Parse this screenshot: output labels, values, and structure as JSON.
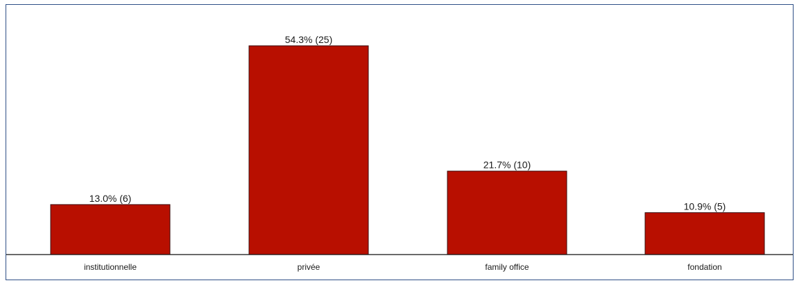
{
  "chart_data": {
    "type": "bar",
    "title": "",
    "xlabel": "",
    "ylabel": "",
    "categories": [
      "institutionnelle",
      "privée",
      "family office",
      "fondation"
    ],
    "values": [
      13.0,
      54.3,
      21.7,
      10.9
    ],
    "counts": [
      6,
      25,
      10,
      5
    ],
    "data_labels": [
      "13.0% (6)",
      "54.3% (25)",
      "21.7% (10)",
      "10.9% (5)"
    ],
    "ylim": [
      0,
      60
    ],
    "grid": false,
    "legend": "none",
    "bar_color": "#b80f00"
  }
}
